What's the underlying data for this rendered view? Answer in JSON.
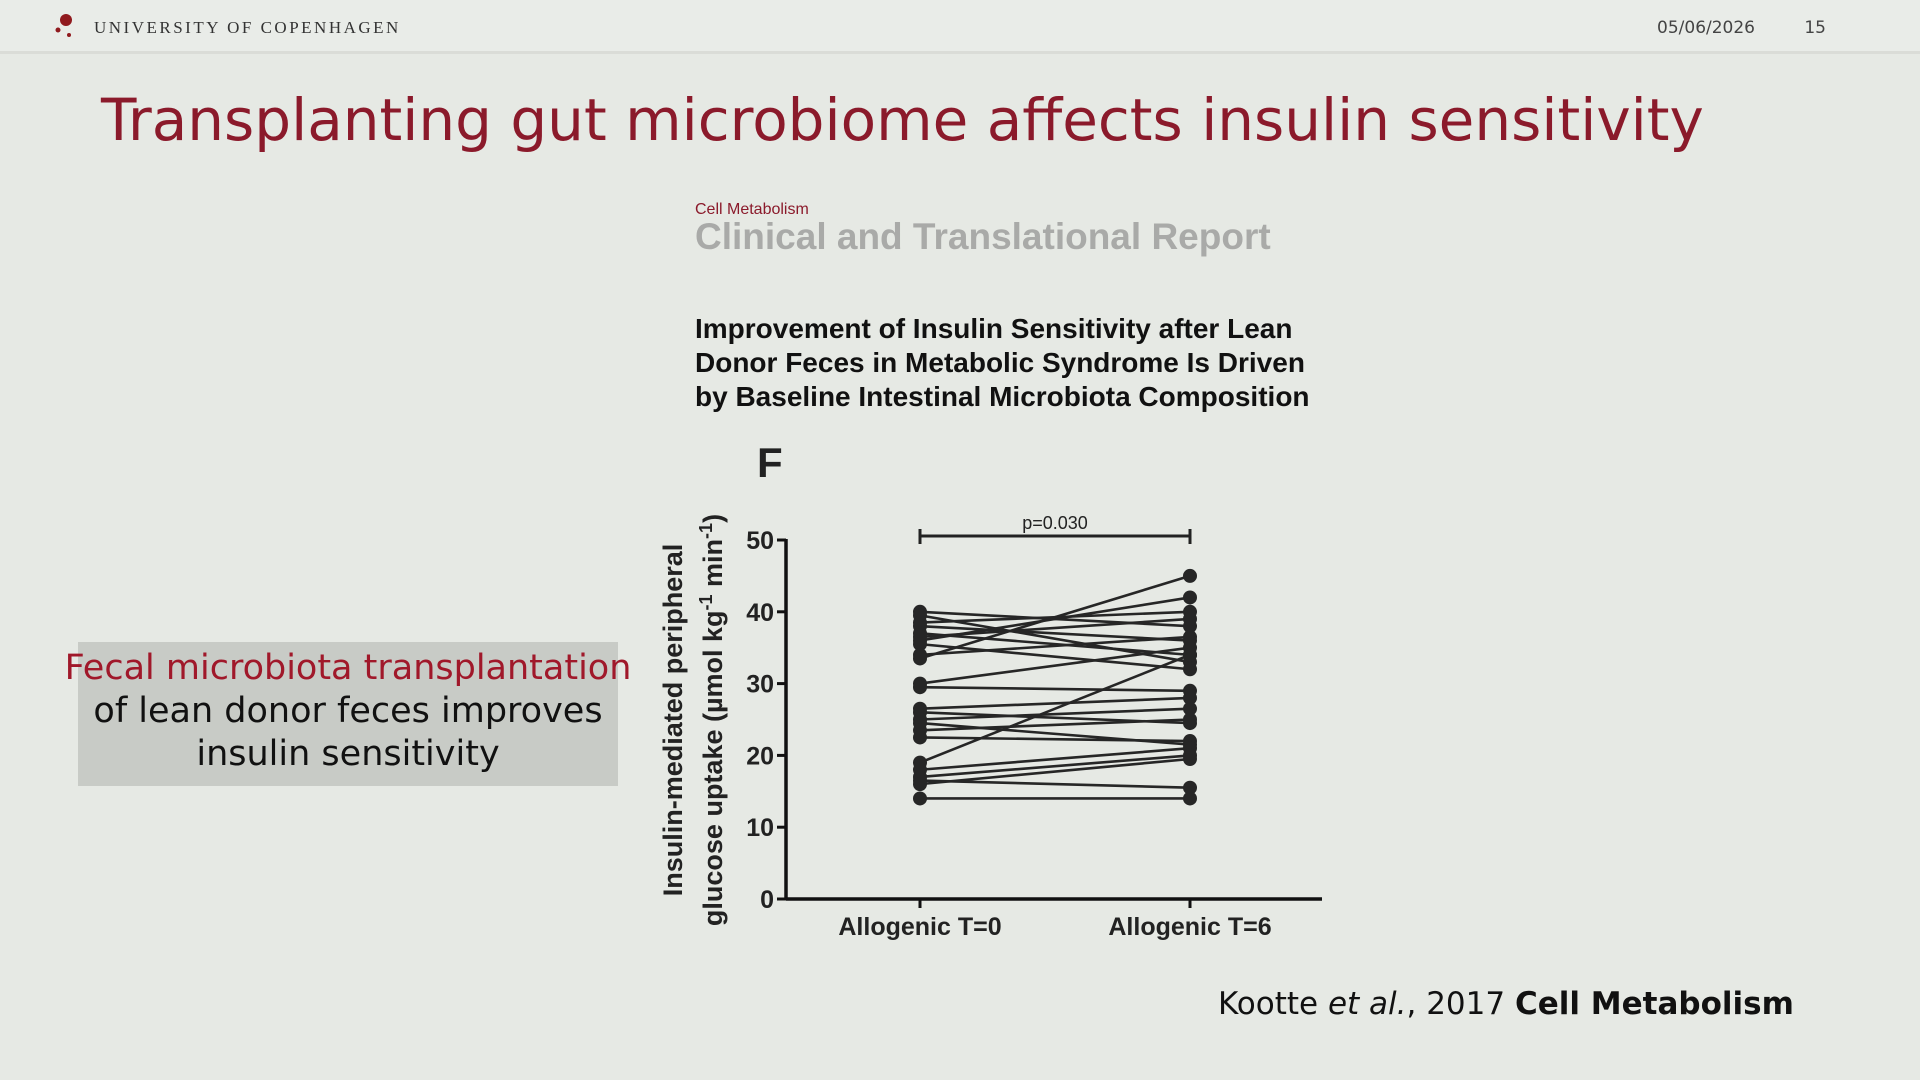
{
  "header": {
    "institution": "UNIVERSITY OF COPENHAGEN",
    "date": "05/06/2026",
    "page": "15"
  },
  "title": "Transplanting gut microbiome affects insulin sensitivity",
  "paper": {
    "journal": "Cell Metabolism",
    "section": "Clinical and Translational Report",
    "title_lines": [
      "Improvement of Insulin Sensitivity after Lean",
      "Donor Feces in Metabolic Syndrome Is Driven",
      "by Baseline Intestinal Microbiota Composition"
    ]
  },
  "callout": {
    "highlight": "Fecal microbiota transplantation",
    "lines": [
      "of lean donor feces improves",
      "insulin sensitivity"
    ]
  },
  "citation": [
    "Kootte ",
    "et al.",
    ", 2017 ",
    "Cell Metabolism"
  ],
  "chart_data": {
    "type": "paired",
    "panel_label": "F",
    "ylabel": [
      "Insulin-mediated peripheral",
      "glucose uptake (µmol kg",
      "-1",
      " min",
      "-1",
      ")"
    ],
    "categories": [
      "Allogenic T=0",
      "Allogenic T=6"
    ],
    "annotation": "p=0.030",
    "color": "#262626",
    "ylim": [
      0,
      50
    ],
    "yticks": [
      0,
      10,
      20,
      30,
      40,
      50
    ],
    "series": [
      {
        "values": [
          40,
          38
        ]
      },
      {
        "values": [
          39.5,
          33
        ]
      },
      {
        "values": [
          38.5,
          40
        ]
      },
      {
        "values": [
          38,
          36
        ]
      },
      {
        "values": [
          37,
          34
        ]
      },
      {
        "values": [
          36.5,
          39
        ]
      },
      {
        "values": [
          36,
          42
        ]
      },
      {
        "values": [
          35.5,
          32
        ]
      },
      {
        "values": [
          34,
          36.5
        ]
      },
      {
        "values": [
          33.5,
          45
        ]
      },
      {
        "values": [
          30,
          35
        ]
      },
      {
        "values": [
          29.5,
          29
        ]
      },
      {
        "values": [
          26.5,
          28
        ]
      },
      {
        "values": [
          26,
          24.5
        ]
      },
      {
        "values": [
          25,
          26.5
        ]
      },
      {
        "values": [
          24.5,
          21.5
        ]
      },
      {
        "values": [
          23.5,
          25
        ]
      },
      {
        "values": [
          22.5,
          22
        ]
      },
      {
        "values": [
          19,
          34
        ]
      },
      {
        "values": [
          18,
          21
        ]
      },
      {
        "values": [
          17,
          20
        ]
      },
      {
        "values": [
          16.5,
          15.5
        ]
      },
      {
        "values": [
          16,
          19.5
        ]
      },
      {
        "values": [
          14,
          14
        ]
      }
    ]
  }
}
